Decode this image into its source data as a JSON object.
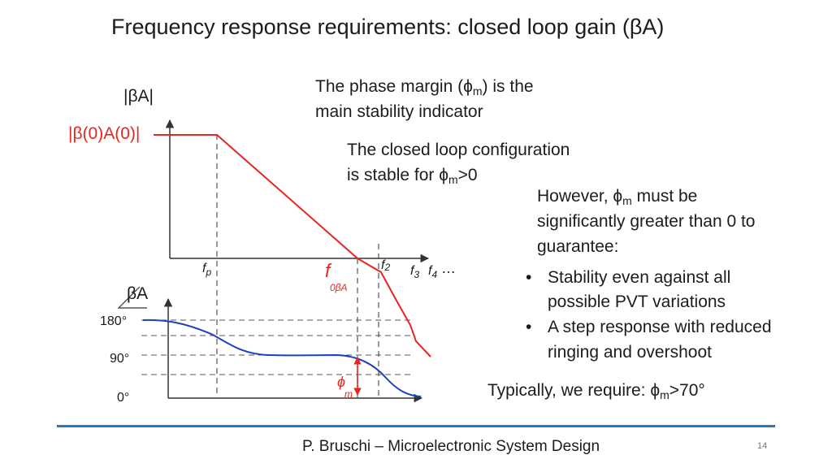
{
  "title": "Frequency response requirements: closed loop gain (βA)",
  "plot": {
    "mag_axis_label": "|βA|",
    "dc_gain_label": "|β(0)A(0)|",
    "phase_axis_label": "βA",
    "phase_ticks": [
      "180°",
      "90°",
      "0°"
    ],
    "freq_labels": {
      "fp_main": "f",
      "fp_sub": "p",
      "f0_main": "f",
      "f0_sub": "0βA",
      "f2_main": "f",
      "f2_sub": "2",
      "f3_main": "f",
      "f3_sub": "3",
      "f4_main": "f",
      "f4_sub": "4",
      "ellipsis": "…"
    },
    "phi_m_main": "ϕ",
    "phi_m_sub": "m"
  },
  "notes": {
    "phase_margin_line1_pre": "The phase margin (",
    "phase_margin_symbol": "ϕ",
    "phase_margin_sub": "m",
    "phase_margin_line1_post": ") is the",
    "phase_margin_line2": "main stability indicator",
    "stable_line1": "The closed loop configuration",
    "stable_line2_pre": "is stable for ",
    "stable_symbol": "ϕ",
    "stable_sub": "m",
    "stable_post": ">0",
    "however_pre": "However, ",
    "however_symbol": "ϕ",
    "however_sub": "m",
    "however_post": " must be",
    "however_line2": "significantly greater than 0 to",
    "however_line3": "guarantee:",
    "bullet_char": "•",
    "bullet1_line1": "Stability even against all",
    "bullet1_line2": "possible PVT variations",
    "bullet2_line1": "A step response with reduced",
    "bullet2_line2": "ringing and overshoot",
    "require_pre": "Typically, we require: ",
    "require_symbol": "ϕ",
    "require_sub": "m",
    "require_post": ">70°"
  },
  "footer": {
    "text": "P. Bruschi – Microelectronic System Design",
    "page": "14"
  },
  "colors": {
    "magnitude_curve": "#e8251f",
    "phase_curve": "#1f3fc4",
    "accent_rule": "#1f7bc0"
  }
}
